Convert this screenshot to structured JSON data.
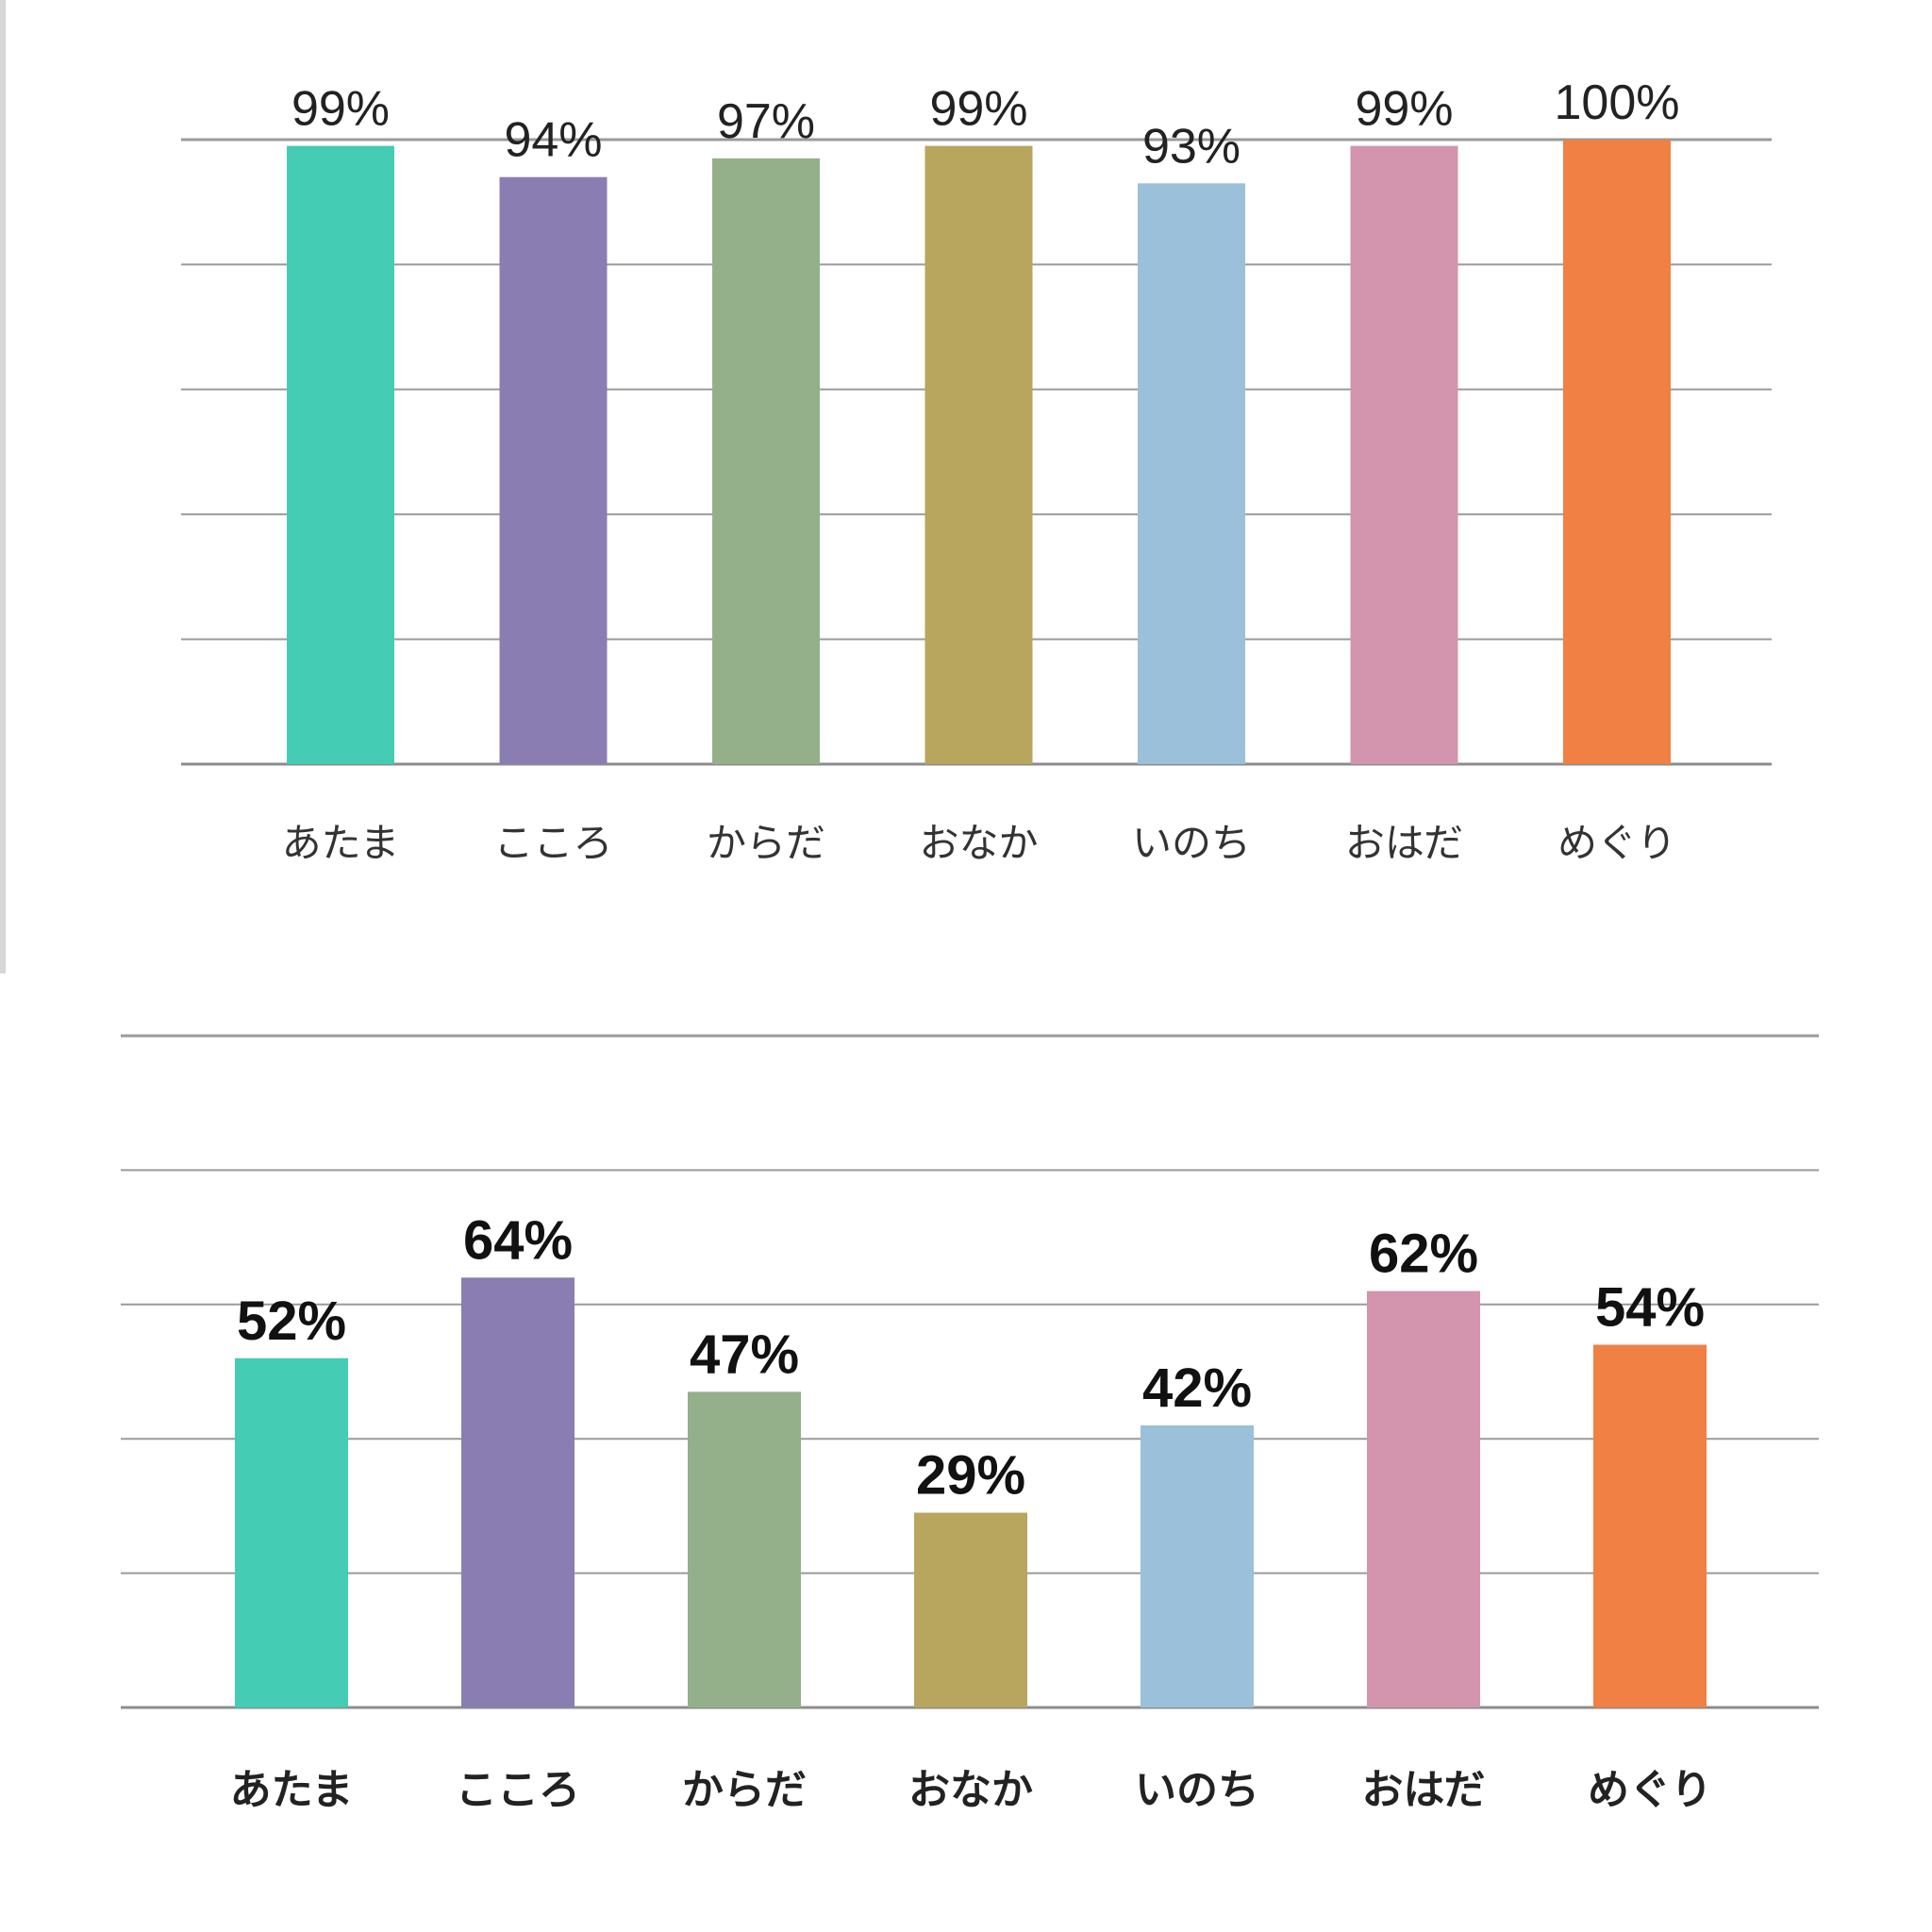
{
  "chart_data": [
    {
      "type": "bar",
      "categories": [
        "あたま",
        "こころ",
        "からだ",
        "おなか",
        "いのち",
        "おはだ",
        "めぐり"
      ],
      "values": [
        99,
        94,
        97,
        99,
        93,
        99,
        100
      ],
      "value_labels": [
        "99%",
        "94%",
        "97%",
        "99%",
        "93%",
        "99%",
        "100%"
      ],
      "colors": [
        "#45ccb5",
        "#8a7db2",
        "#94b08b",
        "#b8a55e",
        "#9ac0da",
        "#d394ae",
        "#f08043"
      ],
      "ylim": [
        0,
        100
      ],
      "grid": true,
      "legend": "none"
    },
    {
      "type": "bar",
      "categories": [
        "あたま",
        "こころ",
        "からだ",
        "おなか",
        "いのち",
        "おはだ",
        "めぐり"
      ],
      "values": [
        52,
        64,
        47,
        29,
        42,
        62,
        54
      ],
      "value_labels": [
        "52%",
        "64%",
        "47%",
        "29%",
        "42%",
        "62%",
        "54%"
      ],
      "colors": [
        "#45ccb5",
        "#8a7db2",
        "#94b08b",
        "#b8a55e",
        "#9ac0da",
        "#d394ae",
        "#f08043"
      ],
      "ylim": [
        0,
        100
      ],
      "grid": true,
      "legend": "none"
    }
  ]
}
